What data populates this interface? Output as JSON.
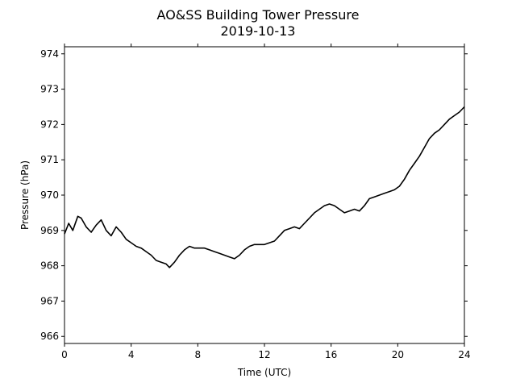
{
  "chart_data": {
    "type": "line",
    "title": "AO&SS Building Tower Pressure",
    "subtitle": "2019-10-13",
    "xlabel": "Time (UTC)",
    "ylabel": "Pressure (hPa)",
    "xlim": [
      0,
      24
    ],
    "ylim": [
      965.8,
      974.2
    ],
    "xticks": [
      0,
      4,
      8,
      12,
      16,
      20,
      24
    ],
    "yticks": [
      966,
      967,
      968,
      969,
      970,
      971,
      972,
      973,
      974
    ],
    "grid": false,
    "legend": "none",
    "line_color": "#000000",
    "series": [
      {
        "x": [
          0,
          0.25,
          0.5,
          0.8,
          1.0,
          1.3,
          1.6,
          1.9,
          2.2,
          2.5,
          2.8,
          3.1,
          3.4,
          3.7,
          4.0,
          4.3,
          4.6,
          4.9,
          5.2,
          5.5,
          5.8,
          6.1,
          6.3,
          6.6,
          6.9,
          7.2,
          7.5,
          7.8,
          8.1,
          8.4,
          8.7,
          9.0,
          9.3,
          9.6,
          9.9,
          10.2,
          10.5,
          10.8,
          11.1,
          11.4,
          11.7,
          12.0,
          12.3,
          12.6,
          12.9,
          13.2,
          13.5,
          13.8,
          14.1,
          14.4,
          14.7,
          15.0,
          15.3,
          15.6,
          15.9,
          16.2,
          16.5,
          16.8,
          17.1,
          17.4,
          17.7,
          18.0,
          18.3,
          18.6,
          18.9,
          19.2,
          19.5,
          19.8,
          20.1,
          20.4,
          20.7,
          21.0,
          21.3,
          21.6,
          21.9,
          22.2,
          22.5,
          22.8,
          23.1,
          23.4,
          23.7,
          24.0
        ],
        "values": [
          968.9,
          969.2,
          969.0,
          969.4,
          969.35,
          969.1,
          968.95,
          969.15,
          969.3,
          969.0,
          968.85,
          969.1,
          968.95,
          968.75,
          968.65,
          968.55,
          968.5,
          968.4,
          968.3,
          968.15,
          968.1,
          968.05,
          967.95,
          968.1,
          968.3,
          968.45,
          968.55,
          968.5,
          968.5,
          968.5,
          968.45,
          968.4,
          968.35,
          968.3,
          968.25,
          968.2,
          968.3,
          968.45,
          968.55,
          968.6,
          968.6,
          968.6,
          968.65,
          968.7,
          968.85,
          969.0,
          969.05,
          969.1,
          969.05,
          969.2,
          969.35,
          969.5,
          969.6,
          969.7,
          969.75,
          969.7,
          969.6,
          969.5,
          969.55,
          969.6,
          969.55,
          969.7,
          969.9,
          969.95,
          970.0,
          970.05,
          970.1,
          970.15,
          970.25,
          970.45,
          970.7,
          970.9,
          971.1,
          971.35,
          971.6,
          971.75,
          971.85,
          972.0,
          972.15,
          972.25,
          972.35,
          972.5
        ]
      }
    ]
  }
}
